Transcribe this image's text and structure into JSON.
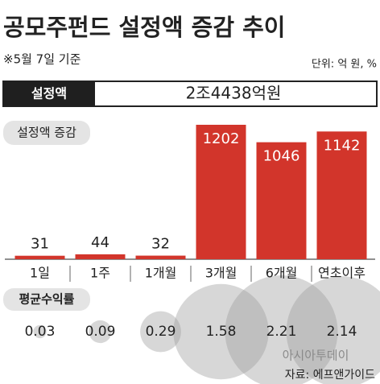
{
  "title": "공모주펀드 설정액 증감 추이",
  "subtitle": "※5월 7일 기준",
  "unit": "단위: 억 원, %",
  "total": {
    "label": "설정액",
    "value": "2조4438억원"
  },
  "chart_data": {
    "type": "bar",
    "categories": [
      "1일",
      "1주",
      "1개월",
      "3개월",
      "6개월",
      "연초이후"
    ],
    "series": [
      {
        "name": "설정액 증감",
        "color": "#d2352b",
        "values": [
          31,
          44,
          32,
          1202,
          1046,
          1142
        ]
      },
      {
        "name": "평균수익률",
        "color": "#9a9a9a",
        "values": [
          0.03,
          0.09,
          0.29,
          1.58,
          2.21,
          2.14
        ]
      }
    ]
  },
  "watermark": "아시아투데이",
  "source": "자료: 에프앤가이드"
}
